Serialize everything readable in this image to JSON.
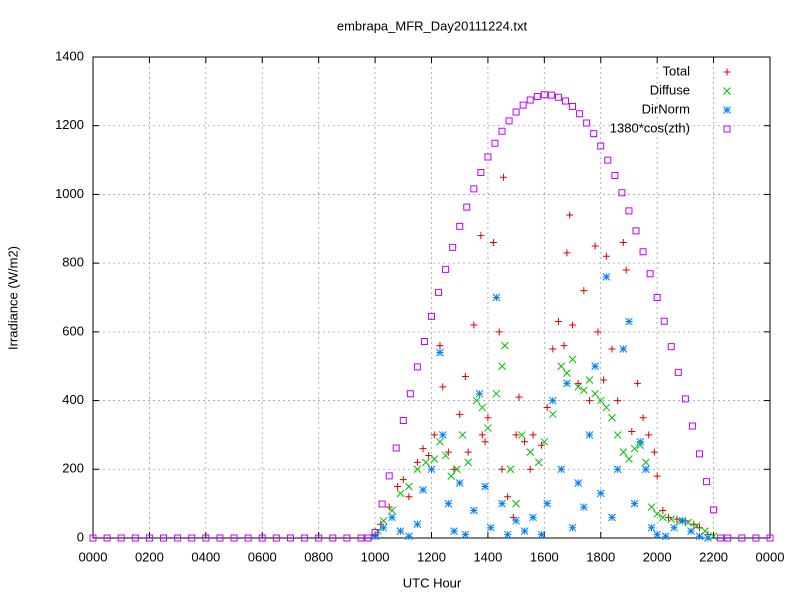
{
  "chart_data": {
    "type": "scatter",
    "title": "embrapa_MFR_Day20111224.txt",
    "xlabel": "UTC Hour",
    "ylabel": "Irradiance (W/m2)",
    "xlim": [
      0,
      24
    ],
    "ylim": [
      0,
      1400
    ],
    "xticks": [
      {
        "value": 0,
        "label": "0000"
      },
      {
        "value": 2,
        "label": "0200"
      },
      {
        "value": 4,
        "label": "0400"
      },
      {
        "value": 6,
        "label": "0600"
      },
      {
        "value": 8,
        "label": "0800"
      },
      {
        "value": 10,
        "label": "1000"
      },
      {
        "value": 12,
        "label": "1200"
      },
      {
        "value": 14,
        "label": "1400"
      },
      {
        "value": 16,
        "label": "1600"
      },
      {
        "value": 18,
        "label": "1800"
      },
      {
        "value": 20,
        "label": "2000"
      },
      {
        "value": 22,
        "label": "2200"
      },
      {
        "value": 24,
        "label": "0000"
      }
    ],
    "yticks": [
      0,
      200,
      400,
      600,
      800,
      1000,
      1200,
      1400
    ],
    "grid": true,
    "legend": "top-right",
    "series": [
      {
        "name": "Total",
        "color": "#e00000",
        "marker": "plus",
        "x": [
          10.0,
          10.2,
          10.5,
          10.8,
          11.0,
          11.2,
          11.5,
          11.7,
          11.9,
          12.1,
          12.3,
          12.4,
          12.6,
          12.8,
          13.0,
          13.2,
          13.3,
          13.5,
          13.75,
          13.8,
          13.9,
          14.0,
          14.2,
          14.55,
          14.4,
          14.5,
          14.7,
          14.9,
          15.0,
          15.1,
          15.3,
          15.5,
          15.6,
          15.9,
          16.1,
          16.3,
          16.5,
          16.7,
          16.8,
          16.9,
          17.0,
          17.2,
          17.4,
          17.6,
          17.8,
          17.9,
          18.1,
          18.2,
          18.4,
          18.6,
          18.8,
          18.9,
          19.1,
          19.3,
          19.5,
          19.7,
          19.9,
          20.0,
          20.2,
          20.4,
          20.7,
          21.0,
          21.3,
          21.5,
          21.8
        ],
        "values": [
          10,
          40,
          90,
          150,
          170,
          120,
          220,
          260,
          240,
          300,
          560,
          440,
          250,
          200,
          360,
          470,
          250,
          620,
          880,
          300,
          280,
          350,
          860,
          1050,
          600,
          200,
          120,
          60,
          300,
          410,
          280,
          200,
          300,
          270,
          380,
          550,
          630,
          560,
          830,
          940,
          620,
          450,
          720,
          400,
          850,
          600,
          460,
          820,
          550,
          400,
          860,
          780,
          310,
          450,
          350,
          300,
          250,
          180,
          80,
          60,
          55,
          50,
          40,
          30,
          10
        ]
      },
      {
        "name": "Diffuse",
        "color": "#00c000",
        "marker": "cross",
        "x": [
          10.1,
          10.3,
          10.6,
          10.9,
          11.2,
          11.5,
          11.8,
          12.1,
          12.3,
          12.5,
          12.7,
          12.9,
          13.1,
          13.3,
          13.6,
          13.8,
          14.0,
          14.3,
          14.5,
          14.6,
          14.8,
          15.0,
          15.2,
          15.5,
          15.8,
          16.0,
          16.3,
          16.6,
          16.8,
          17.0,
          17.2,
          17.4,
          17.6,
          17.8,
          18.0,
          18.2,
          18.4,
          18.6,
          18.8,
          19.0,
          19.2,
          19.4,
          19.6,
          19.8,
          20.0,
          20.2,
          20.5,
          20.8,
          21.1,
          21.4,
          21.7,
          22.0
        ],
        "values": [
          20,
          50,
          80,
          130,
          150,
          200,
          220,
          230,
          280,
          240,
          180,
          200,
          300,
          220,
          400,
          380,
          320,
          420,
          500,
          560,
          200,
          100,
          300,
          250,
          220,
          280,
          360,
          500,
          480,
          520,
          440,
          430,
          460,
          420,
          400,
          380,
          350,
          300,
          250,
          230,
          260,
          270,
          220,
          90,
          70,
          60,
          55,
          50,
          45,
          35,
          20,
          5
        ]
      },
      {
        "name": "DirNorm",
        "color": "#0080ff",
        "marker": "star",
        "x": [
          10.0,
          10.3,
          10.6,
          10.9,
          11.2,
          11.5,
          11.7,
          12.0,
          12.3,
          12.4,
          12.6,
          12.8,
          13.0,
          13.2,
          13.5,
          13.7,
          13.9,
          14.1,
          14.3,
          14.5,
          14.7,
          15.0,
          15.3,
          15.6,
          15.9,
          16.1,
          16.3,
          16.6,
          16.8,
          17.0,
          17.2,
          17.4,
          17.6,
          17.8,
          18.0,
          18.2,
          18.4,
          18.6,
          18.8,
          19.0,
          19.2,
          19.4,
          19.6,
          19.8,
          20.0,
          20.3,
          20.6,
          20.9,
          21.2,
          21.5,
          21.8
        ],
        "values": [
          5,
          30,
          60,
          20,
          5,
          40,
          140,
          200,
          540,
          300,
          100,
          20,
          160,
          10,
          80,
          420,
          150,
          30,
          700,
          100,
          10,
          50,
          20,
          60,
          10,
          100,
          400,
          200,
          450,
          30,
          160,
          90,
          300,
          500,
          130,
          760,
          60,
          200,
          550,
          630,
          100,
          280,
          200,
          30,
          10,
          5,
          30,
          50,
          20,
          5,
          0
        ]
      },
      {
        "name": "1380*cos(zth)",
        "color": "#c000ff",
        "marker": "square",
        "x": [
          0,
          0.5,
          1,
          1.5,
          2,
          2.5,
          3,
          3.5,
          4,
          4.5,
          5,
          5.5,
          6,
          6.5,
          7,
          7.5,
          8,
          8.5,
          9,
          9.5,
          9.75,
          10,
          10.25,
          10.5,
          10.75,
          11,
          11.25,
          11.5,
          11.75,
          12,
          12.25,
          12.5,
          12.75,
          13,
          13.25,
          13.5,
          13.75,
          14,
          14.25,
          14.5,
          14.75,
          15,
          15.25,
          15.5,
          15.75,
          16,
          16.25,
          16.5,
          16.75,
          17,
          17.25,
          17.5,
          17.75,
          18,
          18.25,
          18.5,
          18.75,
          19,
          19.25,
          19.5,
          19.75,
          20,
          20.25,
          20.5,
          20.75,
          21,
          21.25,
          21.5,
          21.75,
          22,
          22.25,
          22.5,
          23,
          23.5,
          24
        ],
        "values": [
          0,
          0,
          0,
          0,
          0,
          0,
          0,
          0,
          0,
          0,
          0,
          0,
          0,
          0,
          0,
          0,
          0,
          0,
          0,
          0,
          0,
          16,
          99,
          181,
          262,
          342,
          420,
          498,
          572,
          645,
          715,
          782,
          846,
          907,
          963,
          1016,
          1064,
          1109,
          1149,
          1184,
          1214,
          1240,
          1260,
          1275,
          1285,
          1290,
          1289,
          1283,
          1272,
          1256,
          1235,
          1208,
          1177,
          1141,
          1100,
          1055,
          1005,
          952,
          894,
          833,
          769,
          700,
          631,
          557,
          482,
          405,
          326,
          245,
          164,
          82,
          0,
          0,
          0,
          0,
          0
        ]
      }
    ]
  }
}
